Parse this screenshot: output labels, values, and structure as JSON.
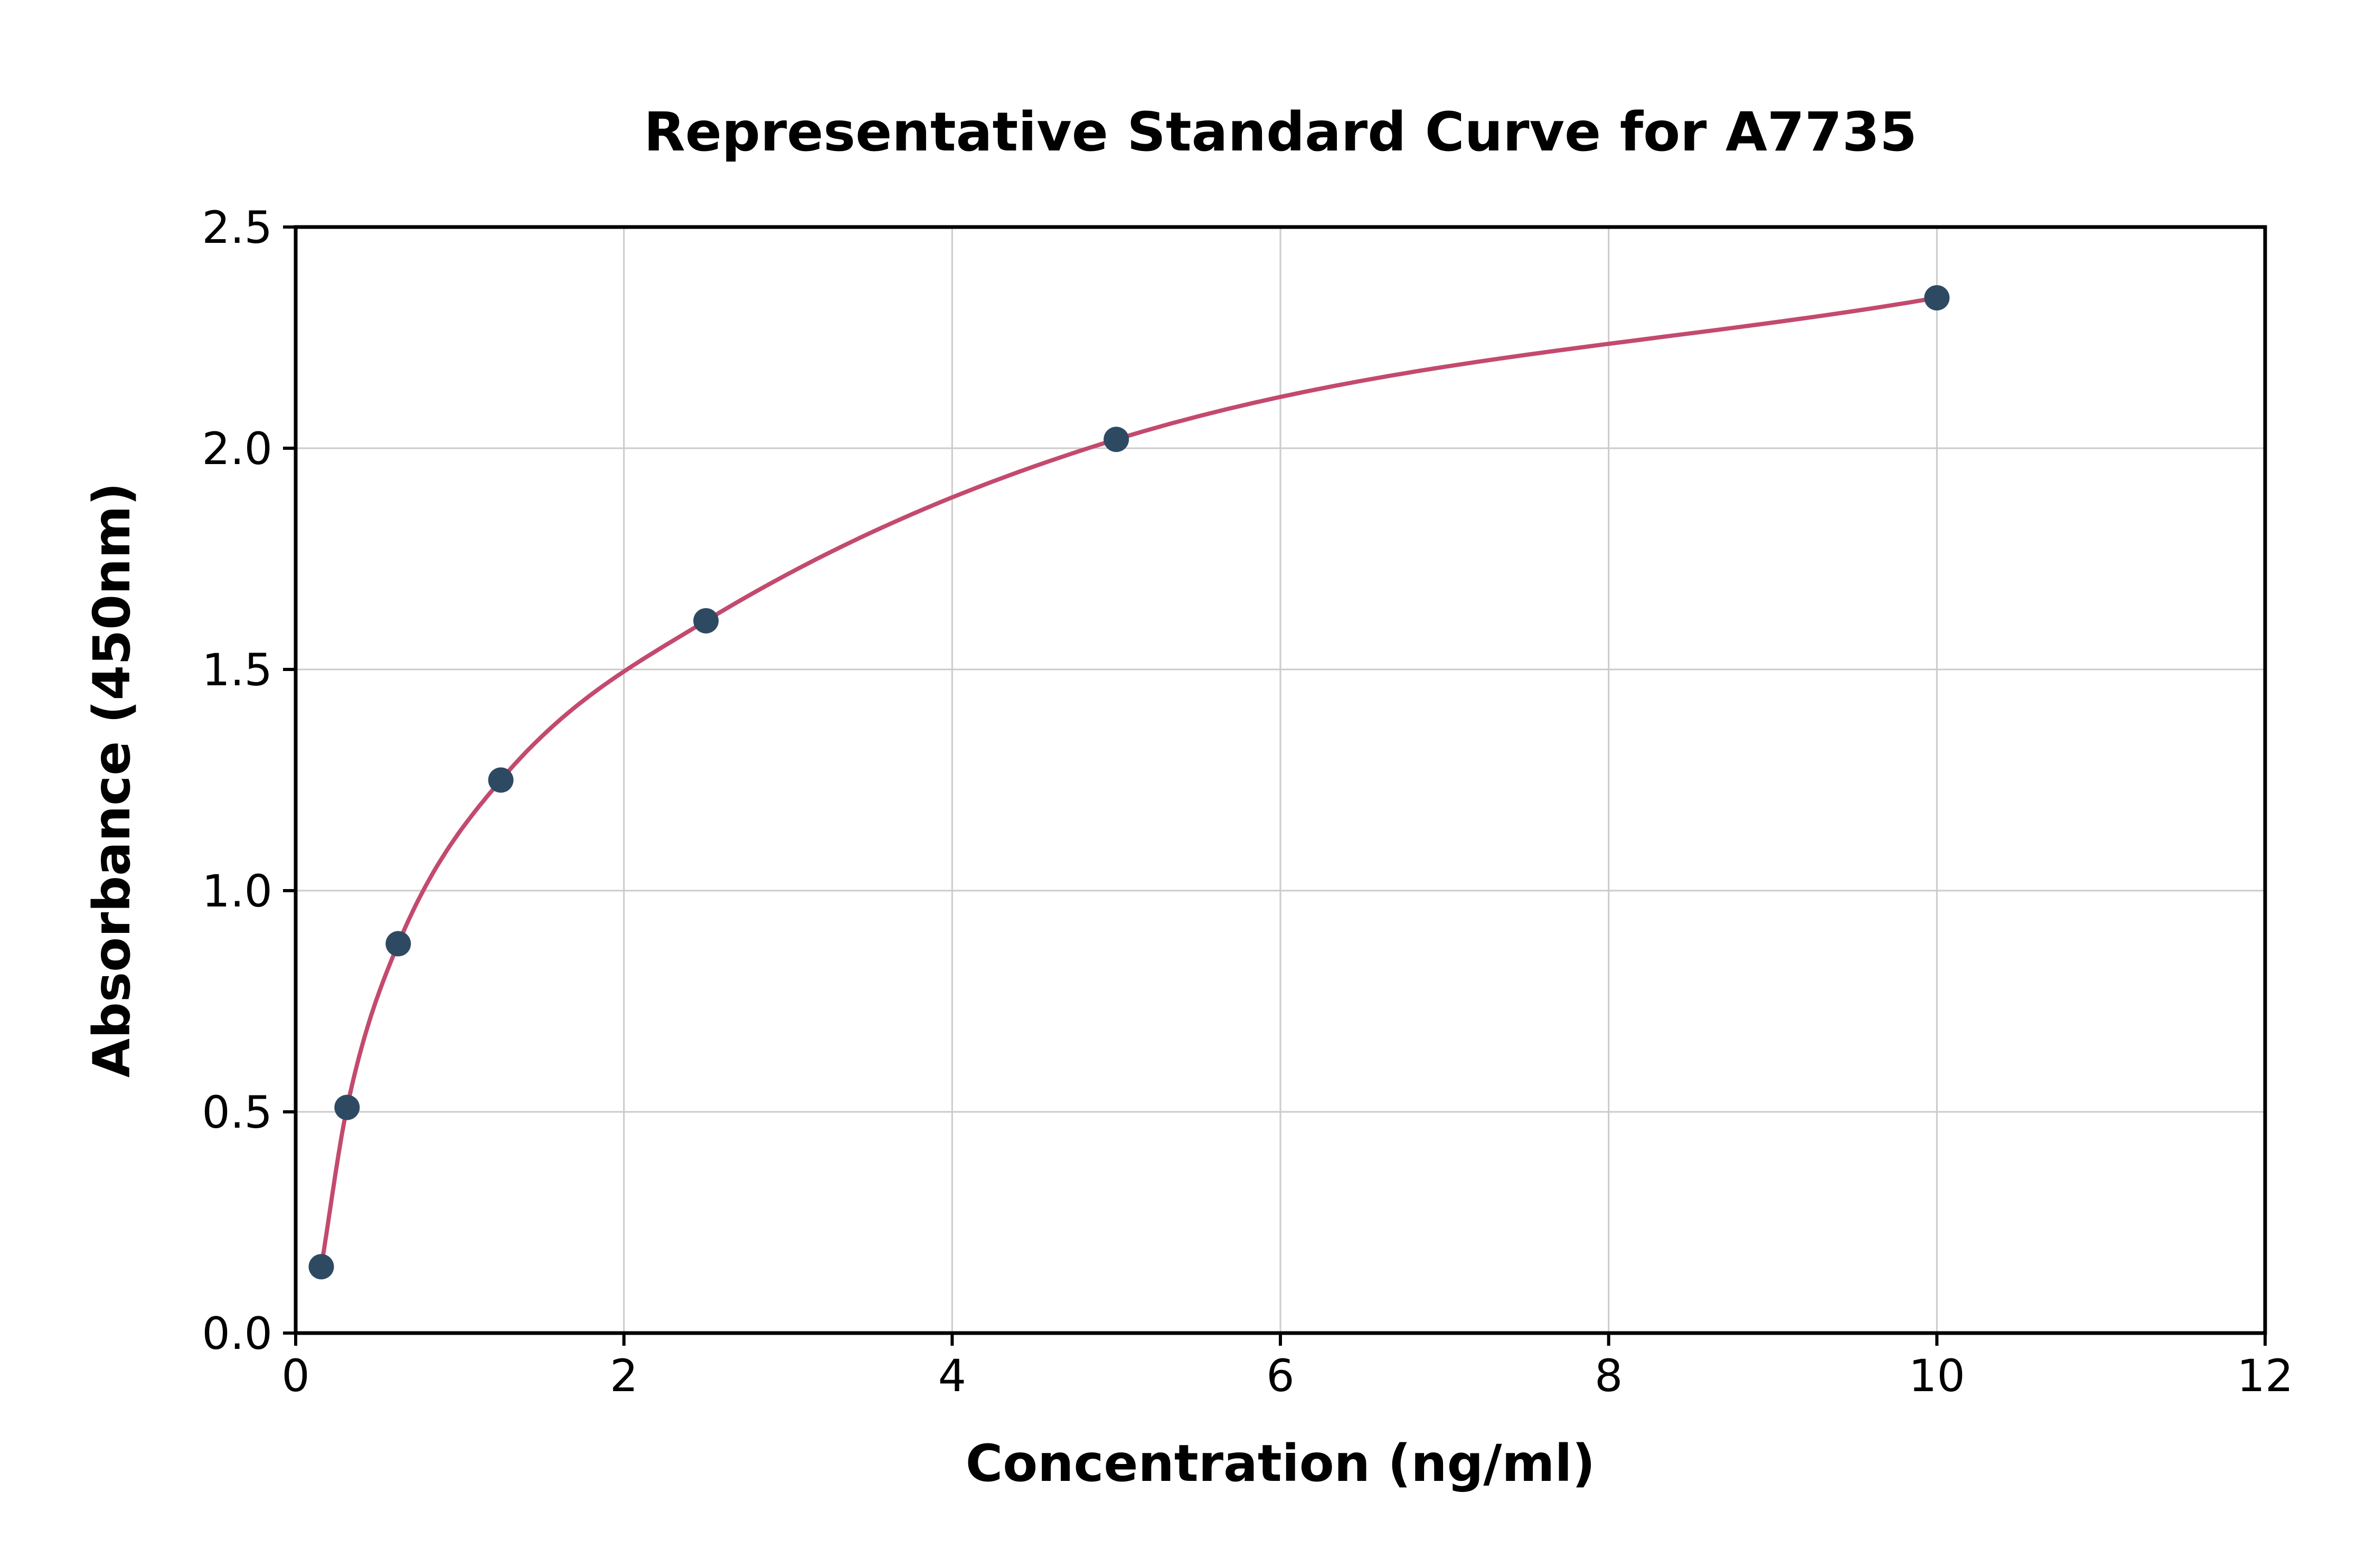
{
  "chart_data": {
    "type": "scatter",
    "title": "Representative Standard Curve for A7735",
    "xlabel": "Concentration (ng/ml)",
    "ylabel": "Absorbance (450nm)",
    "xlim": [
      0,
      12
    ],
    "ylim": [
      0,
      2.5
    ],
    "x_ticks": [
      0,
      2,
      4,
      6,
      8,
      10,
      12
    ],
    "x_tick_labels": [
      "0",
      "2",
      "4",
      "6",
      "8",
      "10",
      "12"
    ],
    "y_ticks": [
      0,
      0.5,
      1.0,
      1.5,
      2.0,
      2.5
    ],
    "y_tick_labels": [
      "0.0",
      "0.5",
      "1.0",
      "1.5",
      "2.0",
      "2.5"
    ],
    "grid": true,
    "legend": "none",
    "series": [
      {
        "name": "standard-points",
        "type": "scatter",
        "color": "#2e4a63",
        "x": [
          0.156,
          0.313,
          0.625,
          1.25,
          2.5,
          5,
          10
        ],
        "y": [
          0.15,
          0.51,
          0.88,
          1.25,
          1.61,
          2.02,
          2.34
        ]
      },
      {
        "name": "fitted-curve",
        "type": "spline",
        "color": "#c34a6e",
        "x": [
          0.156,
          0.313,
          0.625,
          1.25,
          2.5,
          5,
          10
        ],
        "y": [
          0.15,
          0.51,
          0.88,
          1.25,
          1.61,
          2.02,
          2.34
        ]
      }
    ],
    "colors": {
      "background": "#ffffff",
      "grid": "#cbcbcb",
      "axis": "#000000",
      "text": "#000000",
      "points": "#2e4a63",
      "curve": "#c34a6e"
    }
  }
}
